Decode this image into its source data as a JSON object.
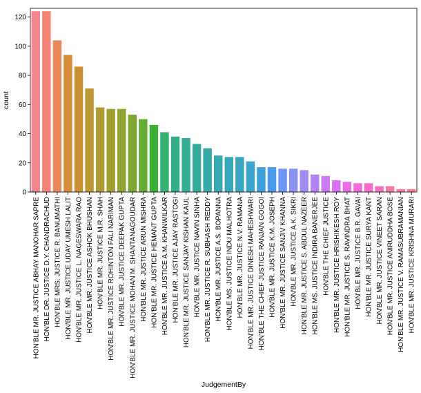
{
  "chart_data": {
    "type": "bar",
    "xlabel": "JudgementBy",
    "ylabel": "count",
    "ylim": [
      0,
      126
    ],
    "yticks": [
      0,
      20,
      40,
      60,
      80,
      100,
      120
    ],
    "grid": false,
    "categories": [
      "HON'BLE MR. JUSTICE ABHAY MANOHAR SAPRE",
      "HON'BLE DR. JUSTICE D.Y. CHANDRACHUD",
      "HON'BLE MRS. JUSTICE R. BANUMATHI",
      "HON'BLE MR. JUSTICE UDAY UMESH LALIT",
      "HON'BLE MR. JUSTICE L. NAGESWARA RAO",
      "HON'BLE MR. JUSTICE ASHOK BHUSHAN",
      "HON'BLE MR. JUSTICE M.R. SHAH",
      "HON'BLE MR. JUSTICE ROHINTON FALI NARIMAN",
      "HON'BLE MR. JUSTICE DEEPAK GUPTA",
      "HON'BLE MR. JUSTICE MOHAN M. SHANTANAGOUDAR",
      "HON'BLE MR. JUSTICE ARUN MISHRA",
      "HON'BLE MR. JUSTICE HEMANT GUPTA",
      "HON'BLE MR. JUSTICE A.M. KHANWILKAR",
      "HON'BLE MR. JUSTICE AJAY RASTOGI",
      "HON'BLE MR. JUSTICE SANJAY KISHAN KAUL",
      "HON'BLE MR. JUSTICE NAVIN SINHA",
      "HON'BLE MR. JUSTICE R. SUBHASH REDDY",
      "HON'BLE MR. JUSTICE A.S. BOPANNA",
      "HON'BLE MS. JUSTICE INDU MALHOTRA",
      "HON'BLE MR. JUSTICE N.V. RAMANA",
      "HON'BLE MR. JUSTICE DINESH MAHESHWARI",
      "HON'BLE THE CHIEF JUSTICE RANJAN GOGOI",
      "HON'BLE MR. JUSTICE K.M. JOSEPH",
      "HON'BLE MR. JUSTICE SANJIV KHANNA",
      "HON'BLE MR. JUSTICE A.K. SIKRI",
      "HON'BLE MR. JUSTICE S. ABDUL NAZEER",
      "HON'BLE MS. JUSTICE INDIRA BANERJEE",
      "HON'BLE THE CHIEF JUSTICE",
      "HON'BLE MR. JUSTICE HRISHIKESH ROY",
      "HON'BLE MR. JUSTICE S. RAVINDRA BHAT",
      "HON'BLE MR. JUSTICE B.R. GAVAI",
      "HON'BLE MR. JUSTICE SURYA KANT",
      "HON'BLE MR. JUSTICE VINEET SARAN",
      "HON'BLE MR. JUSTICE ANIRUDDHA BOSE",
      "HON'BLE MR. JUSTICE V. RAMASUBRAMANIAN",
      "HON'BLE MR. JUSTICE KRISHNA MURARI"
    ],
    "values": [
      124,
      124,
      104,
      94,
      86,
      71,
      58,
      57,
      57,
      53,
      50,
      46,
      41,
      38,
      37,
      33,
      30,
      25,
      24,
      24,
      21,
      17,
      17,
      16,
      16,
      15,
      12,
      11,
      8,
      7,
      6,
      6,
      4,
      4,
      2,
      2
    ],
    "colors": [
      "#f5858f",
      "#f48576",
      "#e8875a",
      "#d88b3b",
      "#c89234",
      "#bb9833",
      "#ae9c32",
      "#a19f31",
      "#91a331",
      "#7ea731",
      "#65ab31",
      "#3ab032",
      "#33b16e",
      "#34ae86",
      "#35ad94",
      "#35ab9e",
      "#36aaa7",
      "#37a9b0",
      "#38a7b9",
      "#39a5c3",
      "#3aa3ce",
      "#3ca0dc",
      "#4a9bed",
      "#6f96f4",
      "#8b90f4",
      "#a18af4",
      "#b483f4",
      "#c97bf4",
      "#dc70f4",
      "#e96de7",
      "#f06bd8",
      "#f46ec9",
      "#f672b9",
      "#f677aa",
      "#f67c9c",
      "#f5818f"
    ]
  }
}
